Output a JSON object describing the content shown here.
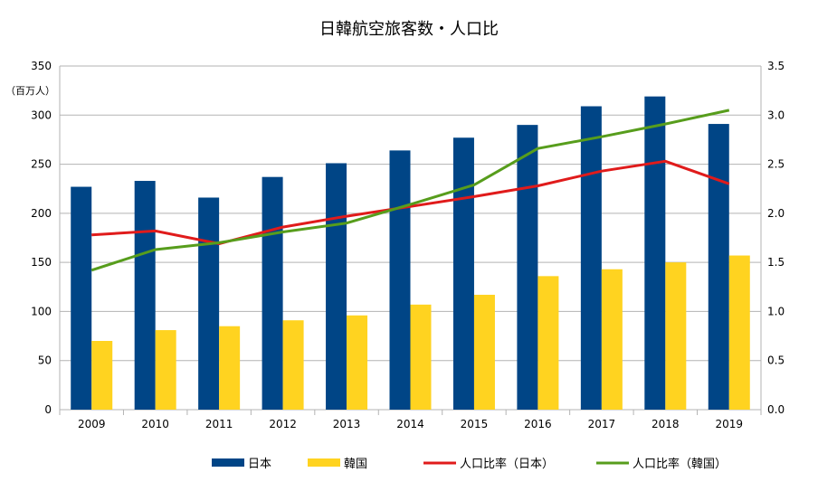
{
  "chart_data": {
    "type": "bar",
    "title": "日韓航空旅客数・人口比",
    "ylabel": "（百万人）",
    "categories": [
      "2009",
      "2010",
      "2011",
      "2012",
      "2013",
      "2014",
      "2015",
      "2016",
      "2017",
      "2018",
      "2019"
    ],
    "y_left": {
      "min": 0,
      "max": 350,
      "ticks": [
        "0",
        "50",
        "100",
        "150",
        "200",
        "250",
        "300",
        "350"
      ]
    },
    "y_right": {
      "min": 0.0,
      "max": 3.5,
      "ticks": [
        "0.0",
        "0.5",
        "1.0",
        "1.5",
        "2.0",
        "2.5",
        "3.0",
        "3.5"
      ]
    },
    "grid": true,
    "legend_position": "bottom",
    "series": [
      {
        "name": "日本",
        "kind": "bar",
        "axis": "left",
        "color": "#004586",
        "values": [
          227,
          233,
          216,
          237,
          251,
          264,
          277,
          290,
          309,
          319,
          291
        ]
      },
      {
        "name": "韓国",
        "kind": "bar",
        "axis": "left",
        "color": "#ffd320",
        "values": [
          70,
          81,
          85,
          91,
          96,
          107,
          117,
          136,
          143,
          150,
          157
        ]
      },
      {
        "name": "人口比率（日本）",
        "kind": "line",
        "axis": "right",
        "color": "#e01b1b",
        "values": [
          1.78,
          1.82,
          1.69,
          1.86,
          1.97,
          2.07,
          2.17,
          2.28,
          2.43,
          2.53,
          2.3
        ]
      },
      {
        "name": "人口比率（韓国）",
        "kind": "line",
        "axis": "right",
        "color": "#579d1c",
        "values": [
          1.42,
          1.63,
          1.7,
          1.81,
          1.9,
          2.09,
          2.29,
          2.66,
          2.78,
          2.91,
          3.05
        ]
      }
    ]
  }
}
